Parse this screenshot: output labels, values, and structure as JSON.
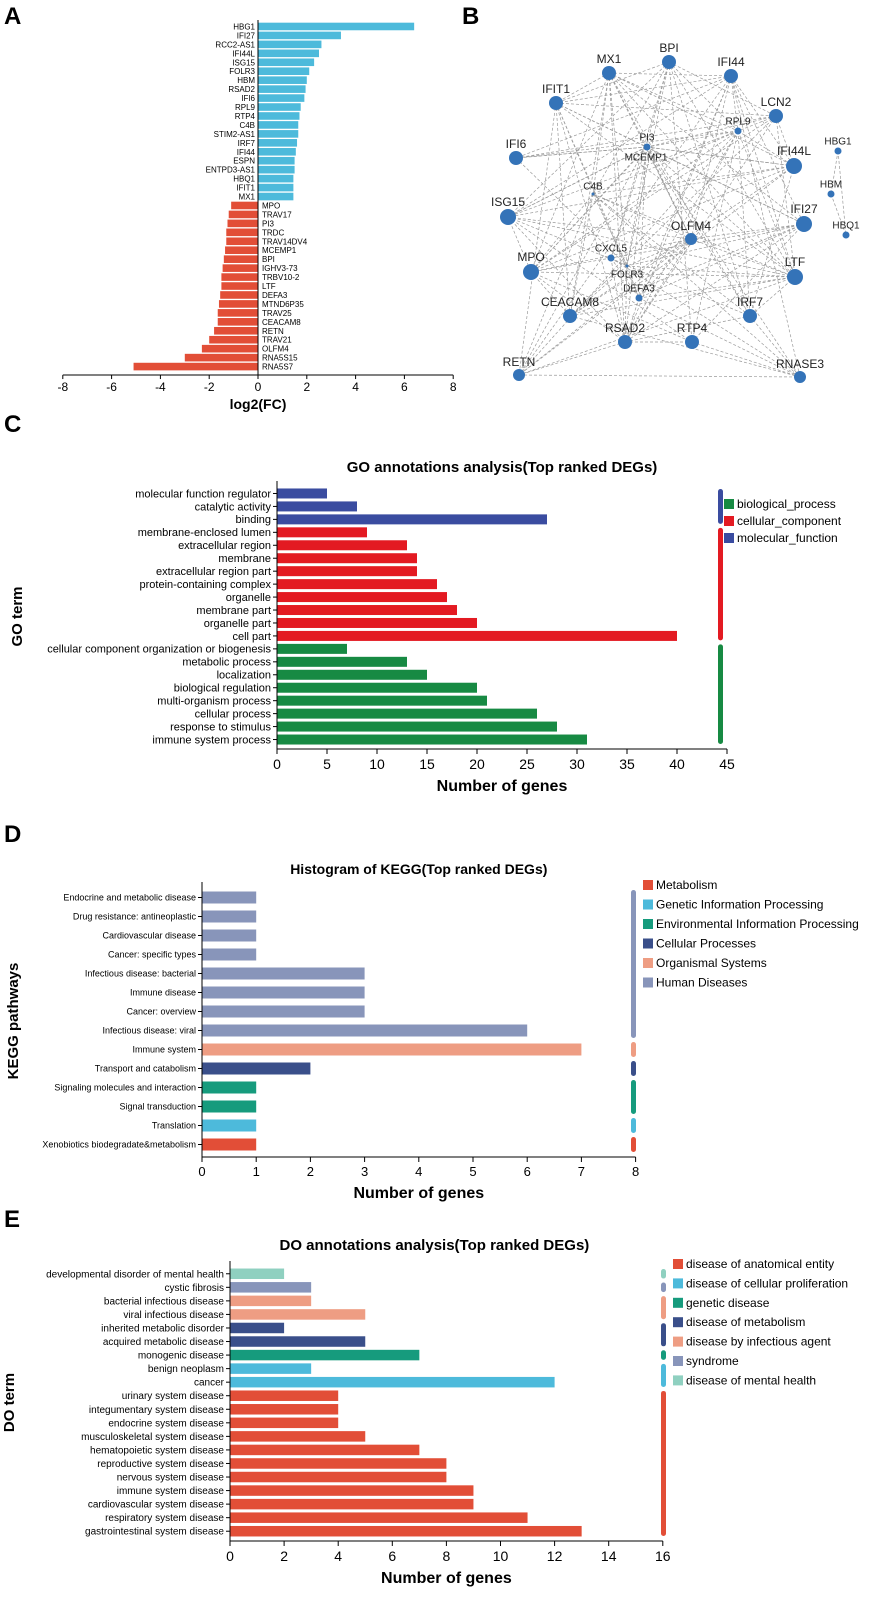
{
  "colors": {
    "up": "#4DBADB",
    "down": "#E24E37",
    "node": "#3473B8",
    "go_bp": "#178A43",
    "go_cc": "#E31A22",
    "go_mf": "#3A4CA0",
    "kegg_metabolism": "#E24E37",
    "kegg_genetic": "#4DBADB",
    "kegg_environmental": "#169B7D",
    "kegg_cellular": "#3A4F8A",
    "kegg_organismal": "#EE9D83",
    "kegg_human": "#8895BA",
    "do_anatomical": "#E24E37",
    "do_proliferation": "#4DBADB",
    "do_genetic": "#169B7D",
    "do_metabolism": "#3A4F8A",
    "do_infectious": "#EE9D83",
    "do_syndrome": "#8895BA",
    "do_mental": "#8FD0C0"
  },
  "panels": {
    "a": "A",
    "b": "B",
    "c": "C",
    "d": "D",
    "e": "E"
  },
  "chart_data": [
    {
      "id": "A",
      "type": "bar",
      "orientation": "horizontal",
      "title": "",
      "xlabel": "log2(FC)",
      "xlim": [
        -8,
        8
      ],
      "xticks": [
        -8,
        -6,
        -4,
        -2,
        0,
        2,
        4,
        6,
        8
      ],
      "categories": [
        "HBG1",
        "IFI27",
        "RCC2-AS1",
        "IFI44L",
        "ISG15",
        "FOLR3",
        "HBM",
        "RSAD2",
        "IFI6",
        "RPL9",
        "RTP4",
        "C4B",
        "STIM2-AS1",
        "IRF7",
        "IFI44",
        "ESPN",
        "ENTPD3-AS1",
        "HBQ1",
        "IFIT1",
        "MX1",
        "MPO",
        "TRAV17",
        "PI3",
        "TRDC",
        "TRAV14DV4",
        "MCEMP1",
        "BPI",
        "IGHV3-73",
        "TRBV10-2",
        "LTF",
        "DEFA3",
        "MTND6P35",
        "TRAV25",
        "CEACAM8",
        "RETN",
        "TRAV21",
        "OLFM4",
        "RNA5S15",
        "RNA5S7"
      ],
      "values": [
        6.4,
        3.4,
        2.6,
        2.5,
        2.3,
        2.1,
        2.0,
        1.95,
        1.9,
        1.75,
        1.7,
        1.65,
        1.65,
        1.6,
        1.55,
        1.5,
        1.5,
        1.45,
        1.45,
        1.45,
        -1.1,
        -1.2,
        -1.25,
        -1.3,
        -1.3,
        -1.35,
        -1.4,
        -1.45,
        -1.5,
        -1.5,
        -1.55,
        -1.6,
        -1.65,
        -1.65,
        -1.8,
        -2.0,
        -2.3,
        -3.0,
        -5.1
      ]
    },
    {
      "id": "B",
      "type": "network",
      "nodes": [
        {
          "label": "BPI",
          "size": "large"
        },
        {
          "label": "MX1",
          "size": "large"
        },
        {
          "label": "IFI44",
          "size": "large"
        },
        {
          "label": "IFIT1",
          "size": "large"
        },
        {
          "label": "LCN2",
          "size": "large"
        },
        {
          "label": "RPL9",
          "size": "small"
        },
        {
          "label": "PI3",
          "size": "small"
        },
        {
          "label": "MCEMP1",
          "size": "small"
        },
        {
          "label": "IFI6",
          "size": "large"
        },
        {
          "label": "IFI44L",
          "size": "xlarge"
        },
        {
          "label": "HBG1",
          "size": "small"
        },
        {
          "label": "HBM",
          "size": "small"
        },
        {
          "label": "HBQ1",
          "size": "small"
        },
        {
          "label": "C4B",
          "size": "tiny"
        },
        {
          "label": "ISG15",
          "size": "xlarge"
        },
        {
          "label": "IFI27",
          "size": "xlarge"
        },
        {
          "label": "OLFM4",
          "size": "medium"
        },
        {
          "label": "CXCL5",
          "size": "small"
        },
        {
          "label": "MPO",
          "size": "xlarge"
        },
        {
          "label": "FOLR3",
          "size": "tiny"
        },
        {
          "label": "DEFA3",
          "size": "small"
        },
        {
          "label": "LTF",
          "size": "xlarge"
        },
        {
          "label": "CEACAM8",
          "size": "large"
        },
        {
          "label": "RSAD2",
          "size": "large"
        },
        {
          "label": "RTP4",
          "size": "large"
        },
        {
          "label": "IRF7",
          "size": "large"
        },
        {
          "label": "RETN",
          "size": "medium"
        },
        {
          "label": "RNASE3",
          "size": "medium"
        }
      ]
    },
    {
      "id": "C",
      "type": "bar",
      "orientation": "horizontal",
      "title": "GO annotations analysis(Top ranked DEGs)",
      "xlabel": "Number of genes",
      "ylabel": "GO term",
      "xlim": [
        0,
        45
      ],
      "xticks": [
        0,
        5,
        10,
        15,
        20,
        25,
        30,
        35,
        40,
        45
      ],
      "legend": [
        "biological_process",
        "cellular_component",
        "molecular_function"
      ],
      "categories": [
        "molecular function regulator",
        "catalytic activity",
        "binding",
        "membrane-enclosed lumen",
        "extracellular region",
        "membrane",
        "extracellular region part",
        "protein-containing complex",
        "organelle",
        "membrane part",
        "organelle part",
        "cell part",
        "cellular component organization or biogenesis",
        "metabolic process",
        "localization",
        "biological regulation",
        "multi-organism process",
        "cellular process",
        "response to stimulus",
        "immune system process"
      ],
      "values": [
        5,
        8,
        27,
        9,
        13,
        14,
        14,
        16,
        17,
        18,
        20,
        40,
        7,
        13,
        15,
        20,
        21,
        26,
        28,
        31
      ],
      "groups": [
        "molecular_function",
        "molecular_function",
        "molecular_function",
        "cellular_component",
        "cellular_component",
        "cellular_component",
        "cellular_component",
        "cellular_component",
        "cellular_component",
        "cellular_component",
        "cellular_component",
        "cellular_component",
        "biological_process",
        "biological_process",
        "biological_process",
        "biological_process",
        "biological_process",
        "biological_process",
        "biological_process",
        "biological_process"
      ]
    },
    {
      "id": "D",
      "type": "bar",
      "orientation": "horizontal",
      "title": "Histogram of KEGG(Top ranked DEGs)",
      "xlabel": "Number of genes",
      "ylabel": "KEGG pathways",
      "xlim": [
        0,
        8
      ],
      "xticks": [
        0,
        1,
        2,
        3,
        4,
        5,
        6,
        7,
        8
      ],
      "legend": [
        "Metabolism",
        "Genetic Information Processing",
        "Environmental Information Processing",
        "Cellular Processes",
        "Organismal Systems",
        "Human Diseases"
      ],
      "categories": [
        "Endocrine and metabolic disease",
        "Drug resistance: antineoplastic",
        "Cardiovascular disease",
        "Cancer: specific types",
        "Infectious disease: bacterial",
        "Immune disease",
        "Cancer: overview",
        "Infectious disease: viral",
        "Immune system",
        "Transport and catabolism",
        "Signaling molecules and interaction",
        "Signal transduction",
        "Translation",
        "Xenobiotics biodegradate&metabolism"
      ],
      "values": [
        1,
        1,
        1,
        1,
        3,
        3,
        3,
        6,
        7,
        2,
        1,
        1,
        1,
        1
      ],
      "groups": [
        "Human Diseases",
        "Human Diseases",
        "Human Diseases",
        "Human Diseases",
        "Human Diseases",
        "Human Diseases",
        "Human Diseases",
        "Human Diseases",
        "Organismal Systems",
        "Cellular Processes",
        "Environmental Information Processing",
        "Environmental Information Processing",
        "Genetic Information Processing",
        "Metabolism"
      ]
    },
    {
      "id": "E",
      "type": "bar",
      "orientation": "horizontal",
      "title": "DO annotations analysis(Top ranked DEGs)",
      "xlabel": "Number of genes",
      "ylabel": "DO term",
      "xlim": [
        0,
        16
      ],
      "xticks": [
        0,
        2,
        4,
        6,
        8,
        10,
        12,
        14,
        16
      ],
      "legend": [
        "disease of anatomical entity",
        "disease of cellular proliferation",
        "genetic disease",
        "disease of metabolism",
        "disease by infectious agent",
        "syndrome",
        "disease of mental health"
      ],
      "categories": [
        "developmental disorder of mental health",
        "cystic fibrosis",
        "bacterial infectious disease",
        "viral infectious disease",
        "inherited metabolic disorder",
        "acquired metabolic disease",
        "monogenic disease",
        "benign neoplasm",
        "cancer",
        "urinary system disease",
        "integumentary system disease",
        "endocrine system disease",
        "musculoskeletal system disease",
        "hematopoietic system disease",
        "reproductive system disease",
        "nervous system disease",
        "immune system disease",
        "cardiovascular system disease",
        "respiratory system disease",
        "gastrointestinal system disease"
      ],
      "values": [
        2,
        3,
        3,
        5,
        2,
        5,
        7,
        3,
        12,
        4,
        4,
        4,
        5,
        7,
        8,
        8,
        9,
        9,
        11,
        13
      ],
      "groups": [
        "disease of mental health",
        "syndrome",
        "disease by infectious agent",
        "disease by infectious agent",
        "disease of metabolism",
        "disease of metabolism",
        "genetic disease",
        "disease of cellular proliferation",
        "disease of cellular proliferation",
        "disease of anatomical entity",
        "disease of anatomical entity",
        "disease of anatomical entity",
        "disease of anatomical entity",
        "disease of anatomical entity",
        "disease of anatomical entity",
        "disease of anatomical entity",
        "disease of anatomical entity",
        "disease of anatomical entity",
        "disease of anatomical entity",
        "disease of anatomical entity"
      ]
    }
  ]
}
